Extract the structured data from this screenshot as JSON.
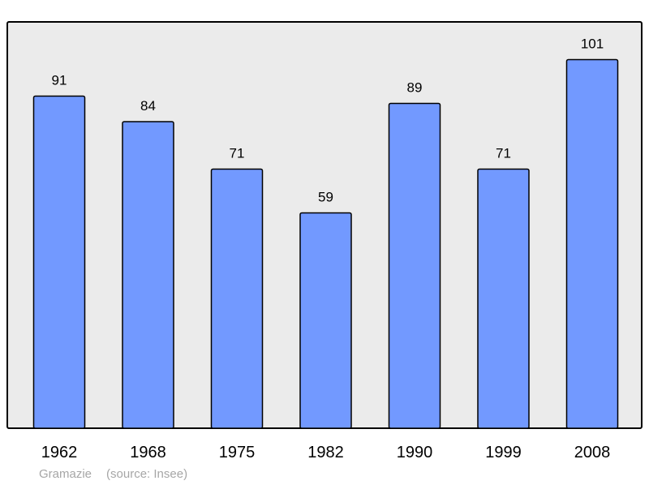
{
  "chart_data": {
    "type": "bar",
    "categories": [
      "1962",
      "1968",
      "1975",
      "1982",
      "1990",
      "1999",
      "2008"
    ],
    "values": [
      91,
      84,
      71,
      59,
      89,
      71,
      101
    ],
    "title": "",
    "xlabel": "",
    "ylabel": "",
    "ylim": [
      0,
      102
    ],
    "grid": false,
    "legend": "none",
    "colors": {
      "bar": "#7299ff",
      "bar_outline": "#000000",
      "plot_background": "#ebebeb",
      "plot_border": "#000000",
      "text": "#000000",
      "caption": "#a6a6a6"
    }
  },
  "caption": {
    "author": "Gramazie",
    "source": "(source: Insee)"
  }
}
